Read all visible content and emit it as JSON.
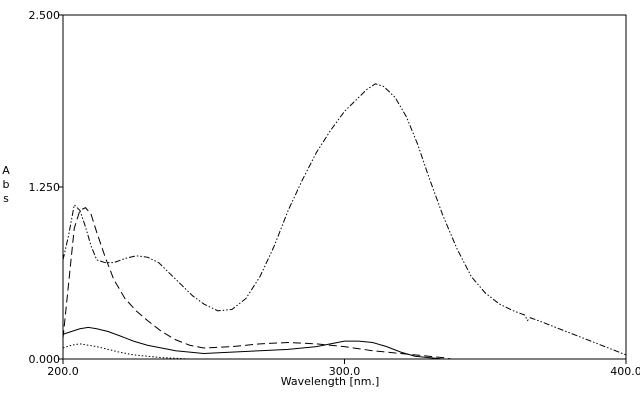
{
  "chart_data": {
    "type": "line",
    "xlabel": "Wavelength [nm.]",
    "ylabel": "A b s",
    "xlim": [
      200.0,
      400.0
    ],
    "ylim": [
      0.0,
      2.5
    ],
    "x_ticks": [
      200.0,
      300.0,
      400.0
    ],
    "x_tick_labels": [
      "200.0",
      "300.0",
      "400.0"
    ],
    "y_ticks": [
      0.0,
      1.25,
      2.5
    ],
    "y_tick_labels": [
      "0.000",
      "1.250",
      "2.500"
    ],
    "grid": false,
    "series": [
      {
        "style": "dash-dot-dot",
        "x": [
          200,
          202,
          204,
          206,
          208,
          210,
          212,
          215,
          218,
          222,
          226,
          230,
          234,
          238,
          242,
          246,
          250,
          255,
          260,
          265,
          270,
          275,
          280,
          285,
          290,
          295,
          300,
          305,
          308,
          311,
          314,
          318,
          322,
          326,
          330,
          335,
          340,
          345,
          350,
          355,
          360,
          364,
          365,
          366,
          370,
          375,
          380,
          385,
          390,
          395,
          400
        ],
        "y": [
          0.72,
          0.9,
          1.12,
          1.08,
          0.96,
          0.82,
          0.72,
          0.7,
          0.7,
          0.73,
          0.75,
          0.74,
          0.7,
          0.62,
          0.54,
          0.46,
          0.4,
          0.35,
          0.36,
          0.44,
          0.6,
          0.82,
          1.08,
          1.3,
          1.5,
          1.66,
          1.8,
          1.9,
          1.96,
          2.0,
          1.98,
          1.9,
          1.76,
          1.56,
          1.32,
          1.04,
          0.8,
          0.6,
          0.48,
          0.4,
          0.35,
          0.32,
          0.28,
          0.3,
          0.27,
          0.23,
          0.19,
          0.15,
          0.11,
          0.07,
          0.03
        ]
      },
      {
        "style": "dashed",
        "x": [
          200,
          202,
          204,
          206,
          208,
          210,
          212,
          215,
          218,
          222,
          226,
          230,
          235,
          240,
          245,
          250,
          260,
          270,
          280,
          290,
          300,
          310,
          320,
          330,
          335,
          338
        ],
        "y": [
          0.15,
          0.55,
          0.95,
          1.08,
          1.1,
          1.05,
          0.92,
          0.74,
          0.58,
          0.44,
          0.35,
          0.28,
          0.2,
          0.14,
          0.1,
          0.08,
          0.09,
          0.11,
          0.12,
          0.11,
          0.09,
          0.06,
          0.04,
          0.02,
          0.01,
          0.0
        ]
      },
      {
        "style": "solid",
        "x": [
          200,
          203,
          206,
          209,
          212,
          216,
          220,
          225,
          230,
          235,
          240,
          245,
          250,
          260,
          270,
          280,
          290,
          295,
          300,
          305,
          310,
          315,
          320,
          325,
          330,
          335,
          338
        ],
        "y": [
          0.18,
          0.2,
          0.22,
          0.23,
          0.22,
          0.2,
          0.17,
          0.13,
          0.1,
          0.08,
          0.06,
          0.05,
          0.04,
          0.05,
          0.06,
          0.07,
          0.09,
          0.11,
          0.13,
          0.13,
          0.12,
          0.09,
          0.05,
          0.02,
          0.01,
          0.0,
          0.0
        ]
      },
      {
        "style": "dotted",
        "x": [
          200,
          203,
          206,
          209,
          212,
          216,
          220,
          225,
          230,
          235,
          240,
          245
        ],
        "y": [
          0.08,
          0.1,
          0.11,
          0.1,
          0.09,
          0.07,
          0.05,
          0.03,
          0.02,
          0.01,
          0.005,
          0.0
        ]
      }
    ]
  }
}
